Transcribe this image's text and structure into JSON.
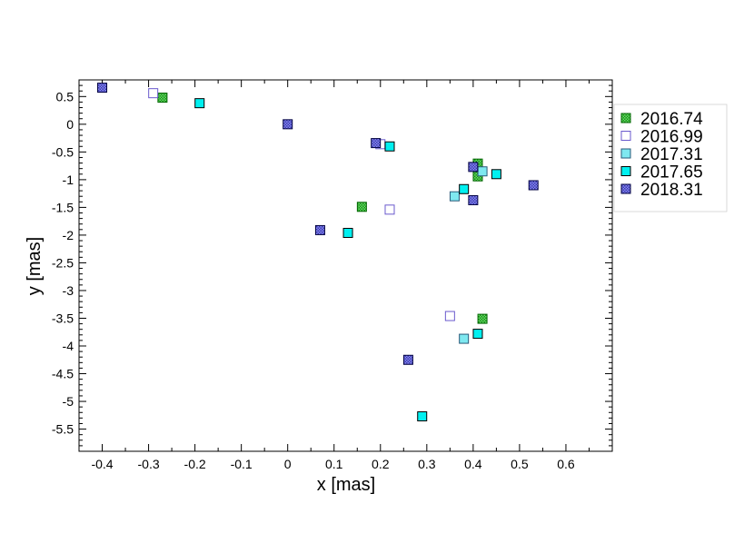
{
  "chart_data": {
    "type": "scatter",
    "title": "",
    "xlabel": "x [mas]",
    "ylabel": "y [mas]",
    "xlim": [
      -0.45,
      0.7
    ],
    "ylim": [
      -5.9,
      0.8
    ],
    "xticks": [
      -0.4,
      -0.3,
      -0.2,
      -0.1,
      0,
      0.1,
      0.2,
      0.3,
      0.4,
      0.5,
      0.6
    ],
    "xtick_labels": [
      "-0.4",
      "-0.3",
      "-0.2",
      "-0.1",
      "0",
      "0.1",
      "0.2",
      "0.3",
      "0.4",
      "0.5",
      "0.6"
    ],
    "yticks": [
      0.5,
      0,
      -0.5,
      -1,
      -1.5,
      -2,
      -2.5,
      -3,
      -3.5,
      -4,
      -4.5,
      -5,
      -5.5
    ],
    "ytick_labels": [
      "0.5",
      "0",
      "-0.5",
      "-1",
      "-1.5",
      "-2",
      "-2.5",
      "-3",
      "-3.5",
      "-4",
      "-4.5",
      "-5",
      "-5.5"
    ],
    "grid": false,
    "legend_position": "outside-right",
    "series": [
      {
        "name": "2016.74",
        "color": "#22aa22",
        "edge": "#006400",
        "pattern": "checker",
        "points": [
          [
            -0.27,
            0.48
          ],
          [
            0.16,
            -1.49
          ],
          [
            0.41,
            -0.71
          ],
          [
            0.41,
            -0.94
          ],
          [
            0.42,
            -3.51
          ]
        ]
      },
      {
        "name": "2016.99",
        "color": "#ffffff",
        "edge": "#6a5acd",
        "pattern": "open",
        "points": [
          [
            -0.29,
            0.56
          ],
          [
            0.2,
            -0.36
          ],
          [
            0.22,
            -1.54
          ],
          [
            0.35,
            -3.46
          ]
        ]
      },
      {
        "name": "2017.31",
        "color": "#7fe8f0",
        "edge": "#2a5a7a",
        "pattern": "light",
        "points": [
          [
            0.36,
            -1.3
          ],
          [
            0.42,
            -0.85
          ],
          [
            0.38,
            -3.87
          ]
        ]
      },
      {
        "name": "2017.65",
        "color": "#00f0f0",
        "edge": "#000000",
        "pattern": "solid",
        "points": [
          [
            -0.19,
            0.38
          ],
          [
            0.22,
            -0.4
          ],
          [
            0.13,
            -1.96
          ],
          [
            0.38,
            -1.17
          ],
          [
            0.45,
            -0.9
          ],
          [
            0.41,
            -3.78
          ],
          [
            0.29,
            -5.27
          ]
        ]
      },
      {
        "name": "2018.31",
        "color": "#7070e0",
        "edge": "#000040",
        "pattern": "hatch",
        "points": [
          [
            -0.4,
            0.66
          ],
          [
            0.0,
            0.0
          ],
          [
            0.19,
            -0.34
          ],
          [
            0.07,
            -1.91
          ],
          [
            0.4,
            -0.77
          ],
          [
            0.4,
            -1.37
          ],
          [
            0.53,
            -1.1
          ],
          [
            0.26,
            -4.25
          ]
        ]
      }
    ]
  }
}
